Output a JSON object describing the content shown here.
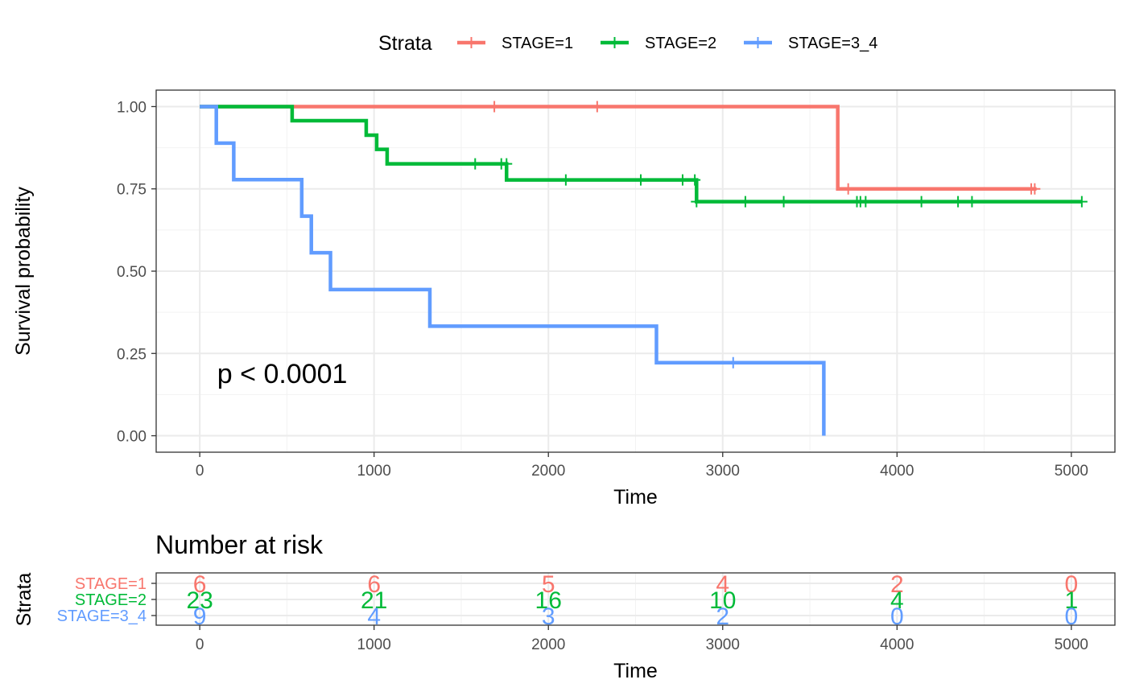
{
  "chart_data": [
    {
      "type": "line",
      "subtype": "kaplan-meier",
      "xlabel": "Time",
      "ylabel": "Survival probability",
      "xlim": [
        -250,
        5250
      ],
      "ylim": [
        -0.05,
        1.05
      ],
      "xticks": [
        0,
        1000,
        2000,
        3000,
        4000,
        5000
      ],
      "xtick_labels": [
        "0",
        "1000",
        "2000",
        "3000",
        "4000",
        "5000"
      ],
      "yticks": [
        0,
        0.25,
        0.5,
        0.75,
        1.0
      ],
      "ytick_labels": [
        "0.00",
        "0.25",
        "0.50",
        "0.75",
        "1.00"
      ],
      "grid": true,
      "legend": {
        "title": "Strata",
        "placement": "top",
        "entries": [
          "STAGE=1",
          "STAGE=2",
          "STAGE=3_4"
        ]
      },
      "annotation": "p < 0.0001",
      "annotation_position": {
        "x": 100,
        "y": 0.19
      },
      "series": [
        {
          "name": "STAGE=1",
          "color": "#F8766D",
          "steps": [
            [
              0,
              1.0
            ],
            [
              3660,
              0.75
            ],
            [
              4800,
              0.75
            ]
          ],
          "censored": [
            [
              1690,
              1.0
            ],
            [
              2280,
              1.0
            ],
            [
              3720,
              0.75
            ],
            [
              4770,
              0.75
            ],
            [
              4790,
              0.75
            ]
          ]
        },
        {
          "name": "STAGE=2",
          "color": "#00BA38",
          "steps": [
            [
              0,
              1.0
            ],
            [
              530,
              0.957
            ],
            [
              955,
              0.913
            ],
            [
              1015,
              0.87
            ],
            [
              1075,
              0.826
            ],
            [
              1760,
              0.777
            ],
            [
              2850,
              0.711
            ],
            [
              5060,
              0.711
            ]
          ],
          "censored": [
            [
              1580,
              0.826
            ],
            [
              1730,
              0.826
            ],
            [
              1760,
              0.826
            ],
            [
              2100,
              0.777
            ],
            [
              2530,
              0.777
            ],
            [
              2770,
              0.777
            ],
            [
              2840,
              0.777
            ],
            [
              2850,
              0.711
            ],
            [
              3130,
              0.711
            ],
            [
              3350,
              0.711
            ],
            [
              3770,
              0.711
            ],
            [
              3790,
              0.711
            ],
            [
              3820,
              0.711
            ],
            [
              4140,
              0.711
            ],
            [
              4350,
              0.711
            ],
            [
              4430,
              0.711
            ],
            [
              5060,
              0.711
            ]
          ]
        },
        {
          "name": "STAGE=3_4",
          "color": "#619CFF",
          "steps": [
            [
              0,
              1.0
            ],
            [
              95,
              0.889
            ],
            [
              195,
              0.778
            ],
            [
              585,
              0.667
            ],
            [
              640,
              0.556
            ],
            [
              750,
              0.444
            ],
            [
              1320,
              0.333
            ],
            [
              2620,
              0.222
            ],
            [
              3580,
              0.0
            ]
          ],
          "censored": [
            [
              3060,
              0.222
            ]
          ]
        }
      ]
    },
    {
      "type": "table",
      "title": "Number at risk",
      "ylabel": "Strata",
      "xlabel": "Time",
      "columns": [
        0,
        1000,
        2000,
        3000,
        4000,
        5000
      ],
      "xtick_labels": [
        "0",
        "1000",
        "2000",
        "3000",
        "4000",
        "5000"
      ],
      "rows": [
        {
          "strata": "STAGE=1",
          "color": "#F8766D",
          "values": [
            "6",
            "6",
            "5",
            "4",
            "2",
            "0"
          ]
        },
        {
          "strata": "STAGE=2",
          "color": "#00BA38",
          "values": [
            "23",
            "21",
            "16",
            "10",
            "4",
            "1"
          ]
        },
        {
          "strata": "STAGE=3_4",
          "color": "#619CFF",
          "values": [
            "9",
            "4",
            "3",
            "2",
            "0",
            "0"
          ]
        }
      ]
    }
  ]
}
